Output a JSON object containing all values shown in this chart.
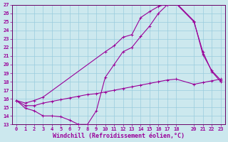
{
  "xlabel": "Windchill (Refroidissement éolien,°C)",
  "background_color": "#cce8ee",
  "grid_color": "#99ccdd",
  "line_color": "#990099",
  "spine_color": "#660066",
  "line1_x": [
    0,
    1,
    2,
    3,
    4,
    5,
    6,
    7,
    8,
    9,
    10,
    11,
    12,
    13,
    14,
    15,
    16,
    17,
    18,
    20,
    21,
    22,
    23
  ],
  "line1_y": [
    15.8,
    14.9,
    14.6,
    14.0,
    14.0,
    13.9,
    13.5,
    13.0,
    13.0,
    14.6,
    18.5,
    20.0,
    21.5,
    22.0,
    23.3,
    24.5,
    26.0,
    27.0,
    27.1,
    25.0,
    21.5,
    19.2,
    18.0
  ],
  "line2_x": [
    0,
    1,
    2,
    3,
    4,
    5,
    6,
    7,
    8,
    9,
    10,
    11,
    12,
    13,
    14,
    15,
    16,
    17,
    18,
    20,
    21,
    22,
    23
  ],
  "line2_y": [
    15.8,
    15.2,
    15.2,
    15.5,
    15.7,
    15.9,
    16.1,
    16.3,
    16.5,
    16.6,
    16.8,
    17.0,
    17.2,
    17.4,
    17.6,
    17.8,
    18.0,
    18.2,
    18.3,
    17.7,
    17.9,
    18.1,
    18.3
  ],
  "line3_x": [
    0,
    1,
    2,
    3,
    10,
    11,
    12,
    13,
    14,
    15,
    16,
    17,
    18,
    20,
    21,
    22,
    23
  ],
  "line3_y": [
    15.8,
    15.5,
    15.8,
    16.2,
    21.5,
    22.2,
    23.2,
    23.5,
    25.5,
    26.2,
    26.8,
    27.1,
    27.2,
    25.1,
    21.2,
    19.3,
    18.2
  ],
  "xlim": [
    -0.5,
    23.5
  ],
  "ylim": [
    13,
    27
  ],
  "xticks": [
    0,
    1,
    2,
    3,
    4,
    5,
    6,
    7,
    8,
    9,
    10,
    11,
    12,
    13,
    14,
    15,
    16,
    17,
    18,
    20,
    21,
    22,
    23
  ],
  "yticks": [
    13,
    14,
    15,
    16,
    17,
    18,
    19,
    20,
    21,
    22,
    23,
    24,
    25,
    26,
    27
  ],
  "tick_fontsize": 5,
  "xlabel_fontsize": 6,
  "lw": 0.8,
  "ms": 2.5,
  "mew": 0.7
}
